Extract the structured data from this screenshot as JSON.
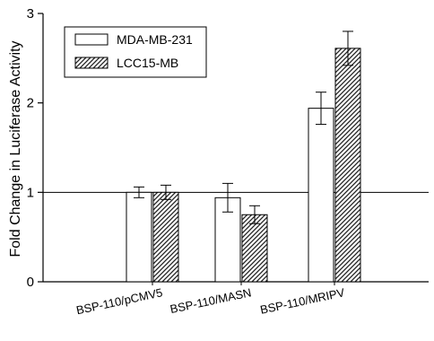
{
  "chart_data": {
    "type": "bar",
    "title": "",
    "xlabel": "",
    "ylabel": "Fold Change in Luciferase Activity",
    "ylim": [
      0,
      3
    ],
    "yticks": [
      0,
      1,
      2,
      3
    ],
    "ytick_labels": [
      "0",
      "1",
      "2",
      "3"
    ],
    "categories": [
      "BSP-110/pCMV5",
      "BSP-110/MASN",
      "BSP-110/MRIPV"
    ],
    "reference_line": 1,
    "grid": false,
    "legend_position": "top-left",
    "series": [
      {
        "name": "MDA-MB-231",
        "fill": "solid-white",
        "values": [
          1.0,
          0.94,
          1.94
        ],
        "errors": [
          0.06,
          0.16,
          0.18
        ]
      },
      {
        "name": "LCC15-MB",
        "fill": "diagonal-hatch",
        "values": [
          1.0,
          0.75,
          2.61
        ],
        "errors": [
          0.08,
          0.1,
          0.19
        ]
      }
    ],
    "colors": {
      "axis": "#000000",
      "bar_outline": "#000000",
      "bar_fill": "#ffffff",
      "hatch": "#222222",
      "background": "#ffffff"
    }
  }
}
